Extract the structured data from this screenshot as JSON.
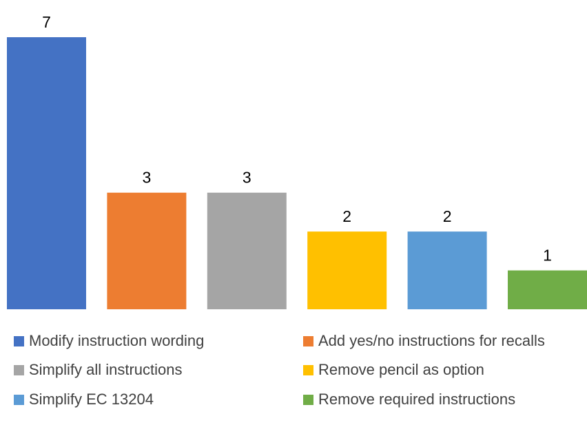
{
  "chart_data": {
    "type": "bar",
    "title": "",
    "xlabel": "",
    "ylabel": "",
    "categories": [
      "Modify instruction wording",
      "Add yes/no instructions for recalls",
      "Simplify all instructions",
      "Remove pencil as option",
      "Simplify EC 13204",
      "Remove required instructions"
    ],
    "values": [
      7,
      3,
      3,
      2,
      2,
      1
    ],
    "colors": [
      "#4472C4",
      "#ED7D31",
      "#A5A5A5",
      "#FFC000",
      "#5B9BD5",
      "#70AD47"
    ],
    "ylim": [
      0,
      7
    ],
    "data_labels": true,
    "grid": false,
    "legend": "bottom"
  }
}
